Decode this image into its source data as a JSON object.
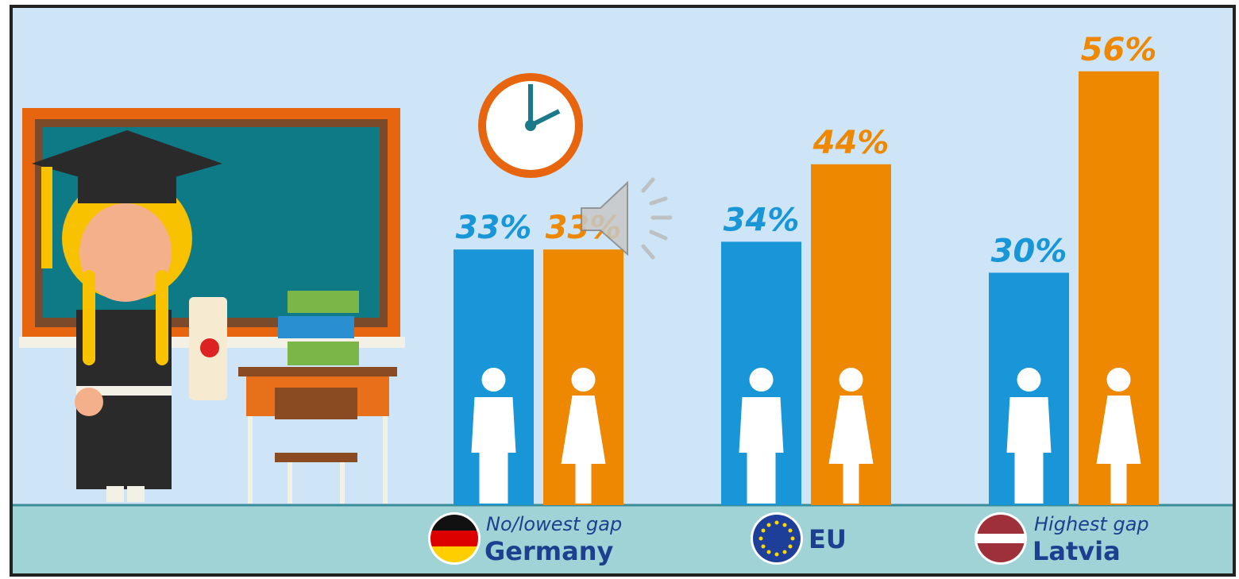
{
  "chart_data": {
    "type": "bar",
    "categories": [
      "Germany",
      "EU",
      "Latvia"
    ],
    "subtitles": [
      "No/lowest gap",
      null,
      "Highest gap"
    ],
    "series": [
      {
        "color": "#1896d8",
        "values": [
          33,
          34,
          30
        ],
        "value_labels": [
          "33%",
          "34%",
          "30%"
        ]
      },
      {
        "color": "#ee8800",
        "values": [
          33,
          44,
          56
        ],
        "value_labels": [
          "33%",
          "44%",
          "56%"
        ]
      }
    ],
    "ylim": [
      0,
      65
    ]
  }
}
